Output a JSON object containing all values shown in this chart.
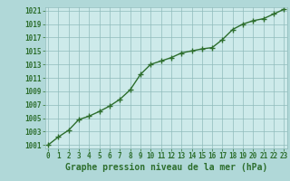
{
  "x": [
    0,
    1,
    2,
    3,
    4,
    5,
    6,
    7,
    8,
    9,
    10,
    11,
    12,
    13,
    14,
    15,
    16,
    17,
    18,
    19,
    20,
    21,
    22,
    23
  ],
  "y": [
    1001.0,
    1002.2,
    1003.2,
    1004.8,
    1005.3,
    1006.0,
    1006.8,
    1007.8,
    1009.2,
    1011.5,
    1013.0,
    1013.5,
    1014.0,
    1014.7,
    1015.0,
    1015.3,
    1015.5,
    1016.7,
    1018.2,
    1019.0,
    1019.5,
    1019.8,
    1020.5,
    1021.2
  ],
  "line_color": "#2d6e2d",
  "marker": "+",
  "marker_size": 4,
  "marker_linewidth": 1.0,
  "bg_color": "#b0d8d8",
  "plot_bg": "#cdeaea",
  "grid_color": "#90bbbb",
  "xlabel": "Graphe pression niveau de la mer (hPa)",
  "xlabel_color": "#2d6e2d",
  "tick_color": "#2d6e2d",
  "ylim_min": 1001,
  "ylim_max": 1021,
  "xlim_min": 0,
  "xlim_max": 23,
  "yticks": [
    1001,
    1003,
    1005,
    1007,
    1009,
    1011,
    1013,
    1015,
    1017,
    1019,
    1021
  ],
  "xticks": [
    0,
    1,
    2,
    3,
    4,
    5,
    6,
    7,
    8,
    9,
    10,
    11,
    12,
    13,
    14,
    15,
    16,
    17,
    18,
    19,
    20,
    21,
    22,
    23
  ],
  "xtick_labels": [
    "0",
    "1",
    "2",
    "3",
    "4",
    "5",
    "6",
    "7",
    "8",
    "9",
    "10",
    "11",
    "12",
    "13",
    "14",
    "15",
    "16",
    "17",
    "18",
    "19",
    "20",
    "21",
    "22",
    "23"
  ],
  "tick_fontsize": 5.5,
  "xlabel_fontsize": 7.0,
  "linewidth": 1.0
}
